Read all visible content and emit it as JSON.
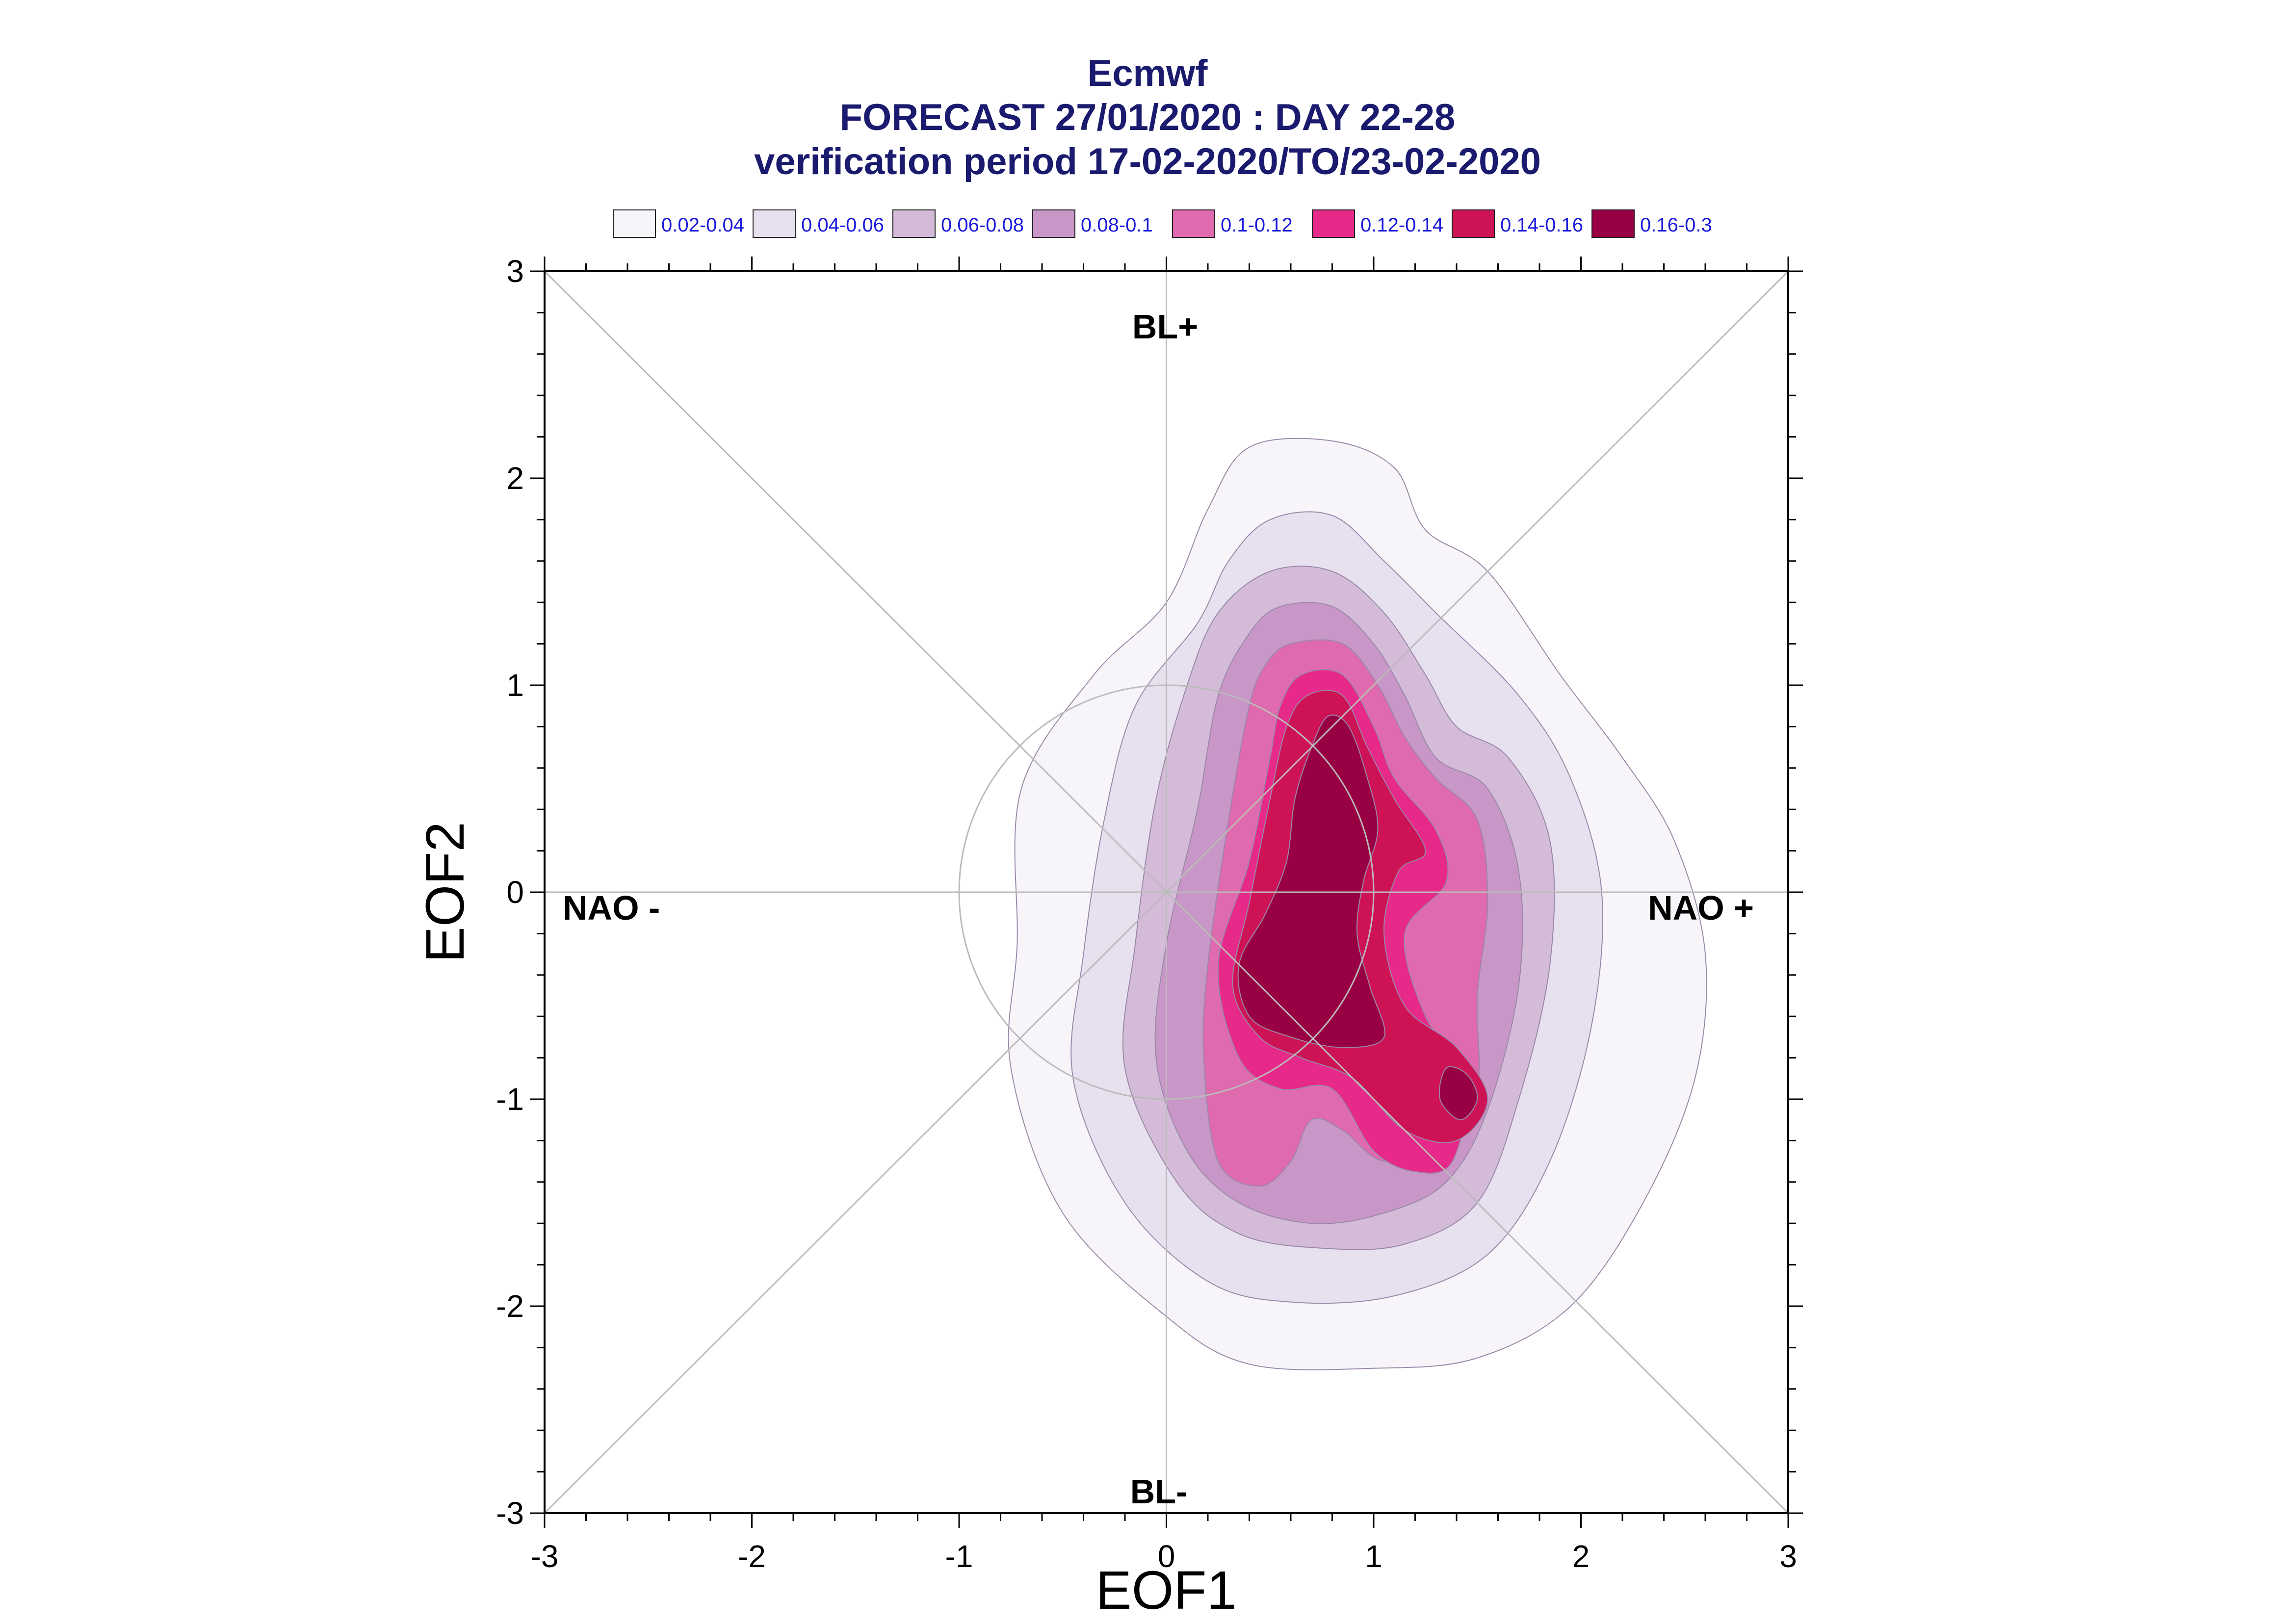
{
  "title": {
    "line1": "Ecmwf",
    "line2": "FORECAST 27/01/2020 : DAY 22-28",
    "line3": "verification period 17-02-2020/TO/23-02-2020"
  },
  "legend": [
    {
      "label": "0.02-0.04",
      "color": "#f7f5fa"
    },
    {
      "label": "0.04-0.06",
      "color": "#e7e0ef"
    },
    {
      "label": "0.06-0.08",
      "color": "#d4bcd9"
    },
    {
      "label": "0.08-0.1",
      "color": "#c996c8"
    },
    {
      "label": "0.1-0.12",
      "color": "#df6aad"
    },
    {
      "label": "0.12-0.14",
      "color": "#e7298a"
    },
    {
      "label": "0.14-0.16",
      "color": "#ce1256"
    },
    {
      "label": "0.16-0.3",
      "color": "#980043"
    }
  ],
  "regimes": {
    "top": "BL+",
    "bottom": "BL-",
    "left": "NAO -",
    "right": "NAO +"
  },
  "chart_data": {
    "type": "contour",
    "xlabel": "EOF1",
    "ylabel": "EOF2",
    "xlim": [
      -3,
      3
    ],
    "ylim": [
      -3,
      3
    ],
    "xticks": [
      -3,
      -2,
      -1,
      0,
      1,
      2,
      3
    ],
    "yticks": [
      -3,
      -2,
      -1,
      0,
      1,
      2,
      3
    ],
    "reference_circle_radius": 1,
    "diagonals": true,
    "legend_position": "top",
    "contours": [
      {
        "level": "0.02-0.04",
        "color": "#f7f5fa",
        "polygons": [
          [
            [
              0.4,
              2.15
            ],
            [
              0.8,
              2.18
            ],
            [
              1.1,
              2.05
            ],
            [
              1.25,
              1.75
            ],
            [
              1.55,
              1.55
            ],
            [
              1.9,
              1.05
            ],
            [
              2.2,
              0.65
            ],
            [
              2.45,
              0.25
            ],
            [
              2.6,
              -0.3
            ],
            [
              2.55,
              -0.9
            ],
            [
              2.3,
              -1.5
            ],
            [
              1.95,
              -2.0
            ],
            [
              1.5,
              -2.25
            ],
            [
              1.0,
              -2.3
            ],
            [
              0.4,
              -2.28
            ],
            [
              0.0,
              -2.05
            ],
            [
              -0.5,
              -1.55
            ],
            [
              -0.75,
              -0.85
            ],
            [
              -0.72,
              -0.25
            ],
            [
              -0.7,
              0.5
            ],
            [
              -0.35,
              1.05
            ],
            [
              0.0,
              1.4
            ],
            [
              0.2,
              1.85
            ]
          ]
        ]
      },
      {
        "level": "0.04-0.06",
        "color": "#e7e0ef",
        "polygons": [
          [
            [
              0.5,
              1.8
            ],
            [
              0.8,
              1.82
            ],
            [
              1.05,
              1.6
            ],
            [
              1.3,
              1.35
            ],
            [
              1.7,
              0.95
            ],
            [
              1.95,
              0.55
            ],
            [
              2.1,
              0.0
            ],
            [
              2.05,
              -0.65
            ],
            [
              1.85,
              -1.3
            ],
            [
              1.55,
              -1.75
            ],
            [
              1.1,
              -1.95
            ],
            [
              0.6,
              -1.98
            ],
            [
              0.2,
              -1.88
            ],
            [
              -0.2,
              -1.5
            ],
            [
              -0.45,
              -0.9
            ],
            [
              -0.4,
              -0.3
            ],
            [
              -0.3,
              0.35
            ],
            [
              -0.15,
              0.9
            ],
            [
              0.15,
              1.3
            ],
            [
              0.3,
              1.6
            ]
          ]
        ]
      },
      {
        "level": "0.06-0.08",
        "color": "#d4bcd9",
        "polygons": [
          [
            [
              0.5,
              1.55
            ],
            [
              0.8,
              1.55
            ],
            [
              1.05,
              1.35
            ],
            [
              1.25,
              1.05
            ],
            [
              1.4,
              0.8
            ],
            [
              1.65,
              0.65
            ],
            [
              1.85,
              0.25
            ],
            [
              1.85,
              -0.35
            ],
            [
              1.7,
              -1.0
            ],
            [
              1.5,
              -1.5
            ],
            [
              1.15,
              -1.7
            ],
            [
              0.75,
              -1.72
            ],
            [
              0.35,
              -1.65
            ],
            [
              0.05,
              -1.4
            ],
            [
              -0.2,
              -0.85
            ],
            [
              -0.15,
              -0.25
            ],
            [
              -0.05,
              0.45
            ],
            [
              0.1,
              1.0
            ],
            [
              0.25,
              1.35
            ]
          ]
        ]
      },
      {
        "level": "0.08-0.1",
        "color": "#c996c8",
        "polygons": [
          [
            [
              0.55,
              1.38
            ],
            [
              0.8,
              1.38
            ],
            [
              1.0,
              1.2
            ],
            [
              1.15,
              0.95
            ],
            [
              1.3,
              0.65
            ],
            [
              1.55,
              0.5
            ],
            [
              1.7,
              0.1
            ],
            [
              1.7,
              -0.45
            ],
            [
              1.55,
              -1.05
            ],
            [
              1.35,
              -1.4
            ],
            [
              1.05,
              -1.55
            ],
            [
              0.7,
              -1.6
            ],
            [
              0.35,
              -1.5
            ],
            [
              0.1,
              -1.25
            ],
            [
              -0.05,
              -0.8
            ],
            [
              0.0,
              -0.25
            ],
            [
              0.15,
              0.4
            ],
            [
              0.25,
              0.95
            ],
            [
              0.4,
              1.25
            ]
          ]
        ]
      },
      {
        "level": "0.1-0.12",
        "color": "#df6aad",
        "polygons": [
          [
            [
              0.6,
              1.2
            ],
            [
              0.85,
              1.2
            ],
            [
              1.02,
              1.0
            ],
            [
              1.15,
              0.75
            ],
            [
              1.3,
              0.55
            ],
            [
              1.5,
              0.35
            ],
            [
              1.55,
              -0.05
            ],
            [
              1.5,
              -0.5
            ],
            [
              1.5,
              -0.95
            ],
            [
              1.35,
              -1.25
            ],
            [
              1.05,
              -1.3
            ],
            [
              0.85,
              -1.15
            ],
            [
              0.7,
              -1.1
            ],
            [
              0.6,
              -1.3
            ],
            [
              0.45,
              -1.42
            ],
            [
              0.25,
              -1.3
            ],
            [
              0.18,
              -0.8
            ],
            [
              0.2,
              -0.35
            ],
            [
              0.3,
              0.35
            ],
            [
              0.4,
              0.9
            ],
            [
              0.48,
              1.1
            ]
          ]
        ]
      },
      {
        "level": "0.12-0.14",
        "color": "#e7298a",
        "polygons": [
          [
            [
              0.65,
              1.05
            ],
            [
              0.85,
              1.05
            ],
            [
              1.0,
              0.8
            ],
            [
              1.1,
              0.55
            ],
            [
              1.3,
              0.3
            ],
            [
              1.35,
              0.05
            ],
            [
              1.15,
              -0.2
            ],
            [
              1.25,
              -0.6
            ],
            [
              1.45,
              -0.9
            ],
            [
              1.38,
              -1.3
            ],
            [
              1.2,
              -1.35
            ],
            [
              1.0,
              -1.25
            ],
            [
              0.8,
              -0.95
            ],
            [
              0.55,
              -0.95
            ],
            [
              0.35,
              -0.8
            ],
            [
              0.25,
              -0.35
            ],
            [
              0.4,
              0.15
            ],
            [
              0.5,
              0.65
            ],
            [
              0.55,
              0.9
            ]
          ]
        ]
      },
      {
        "level": "0.14-0.16",
        "color": "#ce1256",
        "polygons": [
          [
            [
              0.68,
              0.95
            ],
            [
              0.85,
              0.95
            ],
            [
              0.97,
              0.7
            ],
            [
              1.1,
              0.45
            ],
            [
              1.25,
              0.2
            ],
            [
              1.12,
              0.1
            ],
            [
              1.05,
              -0.2
            ],
            [
              1.15,
              -0.55
            ],
            [
              1.4,
              -0.75
            ],
            [
              1.55,
              -1.0
            ],
            [
              1.4,
              -1.2
            ],
            [
              1.15,
              -1.15
            ],
            [
              0.9,
              -0.9
            ],
            [
              0.65,
              -0.8
            ],
            [
              0.45,
              -0.7
            ],
            [
              0.32,
              -0.45
            ],
            [
              0.4,
              -0.05
            ],
            [
              0.5,
              0.45
            ],
            [
              0.58,
              0.8
            ]
          ]
        ]
      },
      {
        "level": "0.16-0.3",
        "color": "#980043",
        "polygons": [
          [
            [
              0.78,
              0.85
            ],
            [
              0.88,
              0.8
            ],
            [
              0.97,
              0.55
            ],
            [
              1.02,
              0.3
            ],
            [
              0.95,
              0.05
            ],
            [
              0.92,
              -0.2
            ],
            [
              0.98,
              -0.45
            ],
            [
              1.05,
              -0.7
            ],
            [
              0.85,
              -0.75
            ],
            [
              0.6,
              -0.7
            ],
            [
              0.4,
              -0.6
            ],
            [
              0.35,
              -0.35
            ],
            [
              0.48,
              -0.1
            ],
            [
              0.58,
              0.15
            ],
            [
              0.62,
              0.45
            ],
            [
              0.7,
              0.7
            ]
          ],
          [
            [
              1.35,
              -0.85
            ],
            [
              1.45,
              -0.88
            ],
            [
              1.5,
              -1.0
            ],
            [
              1.42,
              -1.1
            ],
            [
              1.32,
              -1.0
            ]
          ]
        ]
      }
    ]
  }
}
